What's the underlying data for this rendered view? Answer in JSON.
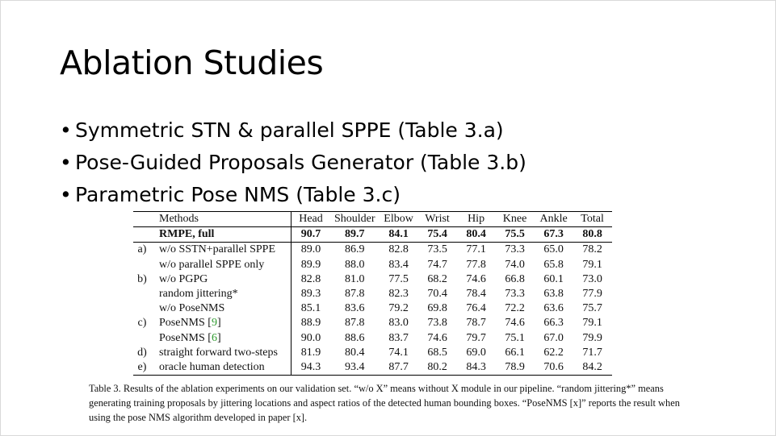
{
  "slide": {
    "title": "Ablation Studies",
    "bullets": [
      "Symmetric STN & parallel SPPE (Table 3.a)",
      "Pose-Guided Proposals Generator (Table 3.b)",
      "Parametric Pose NMS (Table 3.c)"
    ]
  },
  "table": {
    "headers": [
      "Methods",
      "Head",
      "Shoulder",
      "Elbow",
      "Wrist",
      "Hip",
      "Knee",
      "Ankle",
      "Total"
    ],
    "full_row": {
      "group": "",
      "method": "RMPE, full",
      "values": [
        "90.7",
        "89.7",
        "84.1",
        "75.4",
        "80.4",
        "75.5",
        "67.3",
        "80.8"
      ]
    },
    "rows": [
      {
        "group": "a)",
        "method": "w/o SSTN+parallel SPPE",
        "cite": "",
        "values": [
          "89.0",
          "86.9",
          "82.8",
          "73.5",
          "77.1",
          "73.3",
          "65.0",
          "78.2"
        ]
      },
      {
        "group": "",
        "method": "w/o parallel SPPE only",
        "cite": "",
        "values": [
          "89.9",
          "88.0",
          "83.4",
          "74.7",
          "77.8",
          "74.0",
          "65.8",
          "79.1"
        ]
      },
      {
        "group": "b)",
        "method": "w/o PGPG",
        "cite": "",
        "values": [
          "82.8",
          "81.0",
          "77.5",
          "68.2",
          "74.6",
          "66.8",
          "60.1",
          "73.0"
        ]
      },
      {
        "group": "",
        "method": "random jittering*",
        "cite": "",
        "values": [
          "89.3",
          "87.8",
          "82.3",
          "70.4",
          "78.4",
          "73.3",
          "63.8",
          "77.9"
        ]
      },
      {
        "group": "",
        "method": "w/o PoseNMS",
        "cite": "",
        "values": [
          "85.1",
          "83.6",
          "79.2",
          "69.8",
          "76.4",
          "72.2",
          "63.6",
          "75.7"
        ]
      },
      {
        "group": "c)",
        "method": "PoseNMS [",
        "cite": "9",
        "values": [
          "88.9",
          "87.8",
          "83.0",
          "73.8",
          "78.7",
          "74.6",
          "66.3",
          "79.1"
        ]
      },
      {
        "group": "",
        "method": "PoseNMS [",
        "cite": "6",
        "values": [
          "90.0",
          "88.6",
          "83.7",
          "74.6",
          "79.7",
          "75.1",
          "67.0",
          "79.9"
        ]
      },
      {
        "group": "d)",
        "method": "straight forward two-steps",
        "cite": "",
        "values": [
          "81.9",
          "80.4",
          "74.1",
          "68.5",
          "69.0",
          "66.1",
          "62.2",
          "71.7"
        ]
      },
      {
        "group": "e)",
        "method": "oracle human detection",
        "cite": "",
        "values": [
          "94.3",
          "93.4",
          "87.7",
          "80.2",
          "84.3",
          "78.9",
          "70.6",
          "84.2"
        ]
      }
    ],
    "caption": "Table 3. Results of the ablation experiments on our validation set. “w/o X” means without X module in our pipeline. “random jittering*” means generating training proposals by jittering locations and aspect ratios of the detected human bounding boxes. “PoseNMS [x]” reports the result when using the pose NMS algorithm developed in paper [x]."
  }
}
